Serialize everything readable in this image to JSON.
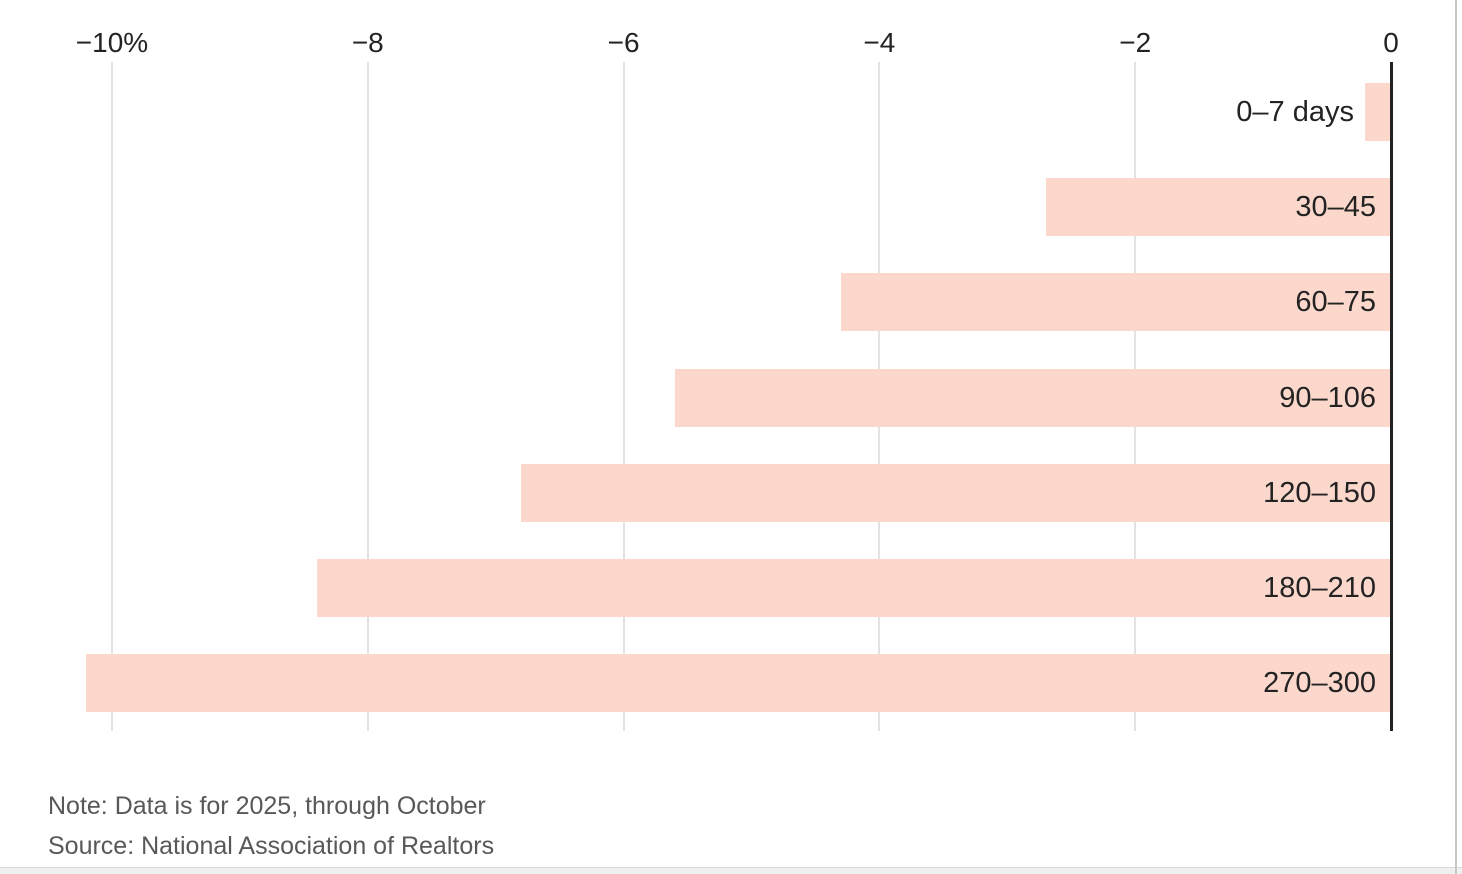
{
  "chart_data": {
    "type": "bar",
    "orientation": "horizontal",
    "title": "",
    "categories": [
      "0–7 days",
      "30–45",
      "60–75",
      "90–106",
      "120–150",
      "180–210",
      "270–300"
    ],
    "values": [
      -0.2,
      -2.7,
      -4.3,
      -5.6,
      -6.8,
      -8.4,
      -10.2
    ],
    "value_unit": "%",
    "xlabel": "",
    "ylabel": "",
    "xlim": [
      -10.4,
      0
    ],
    "x_ticks": [
      {
        "value": -10,
        "label": "−10%"
      },
      {
        "value": -8,
        "label": "−8"
      },
      {
        "value": -6,
        "label": "−6"
      },
      {
        "value": -4,
        "label": "−4"
      },
      {
        "value": -2,
        "label": "−2"
      },
      {
        "value": 0,
        "label": "0"
      }
    ],
    "grid": true,
    "legend": "none",
    "bar_color": "#fbd8cb",
    "axis_line_color": "#222222",
    "gridline_color": "#e3e3e3",
    "label_color": "#232323"
  },
  "footer": {
    "note": "Note: Data is for 2025, through October",
    "source": "Source: National Association of Realtors"
  }
}
